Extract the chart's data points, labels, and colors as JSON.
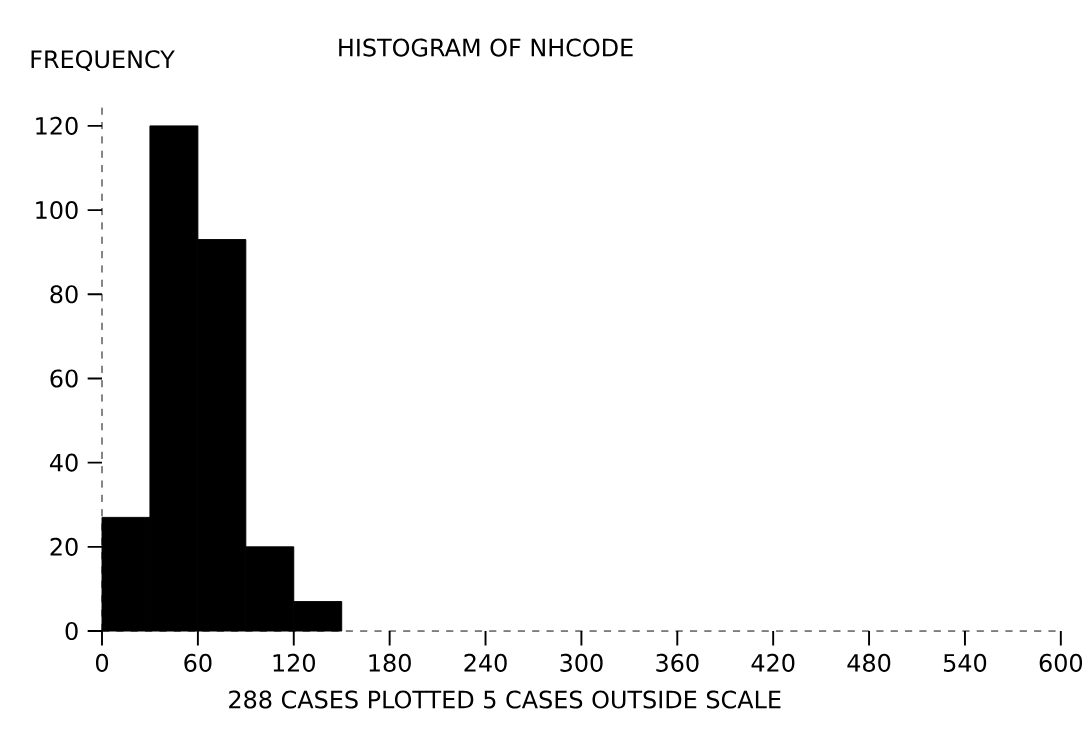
{
  "chart_data": {
    "type": "histogram",
    "title": "HISTOGRAM OF NHCODE",
    "ylabel": "FREQUENCY",
    "bins": [
      0,
      30,
      60,
      90,
      120,
      150
    ],
    "values": [
      27,
      120,
      93,
      20,
      7
    ],
    "color": "#000000",
    "xlim": [
      0,
      600
    ],
    "xticks": [
      0,
      60,
      120,
      180,
      240,
      300,
      360,
      420,
      480,
      540,
      600
    ],
    "ylim": [
      0,
      126
    ],
    "yticks": [
      0,
      20,
      40,
      60,
      80,
      100,
      120
    ],
    "annotations": [
      "288 CASES PLOTTED   5 CASES OUTSIDE SCALE"
    ]
  }
}
